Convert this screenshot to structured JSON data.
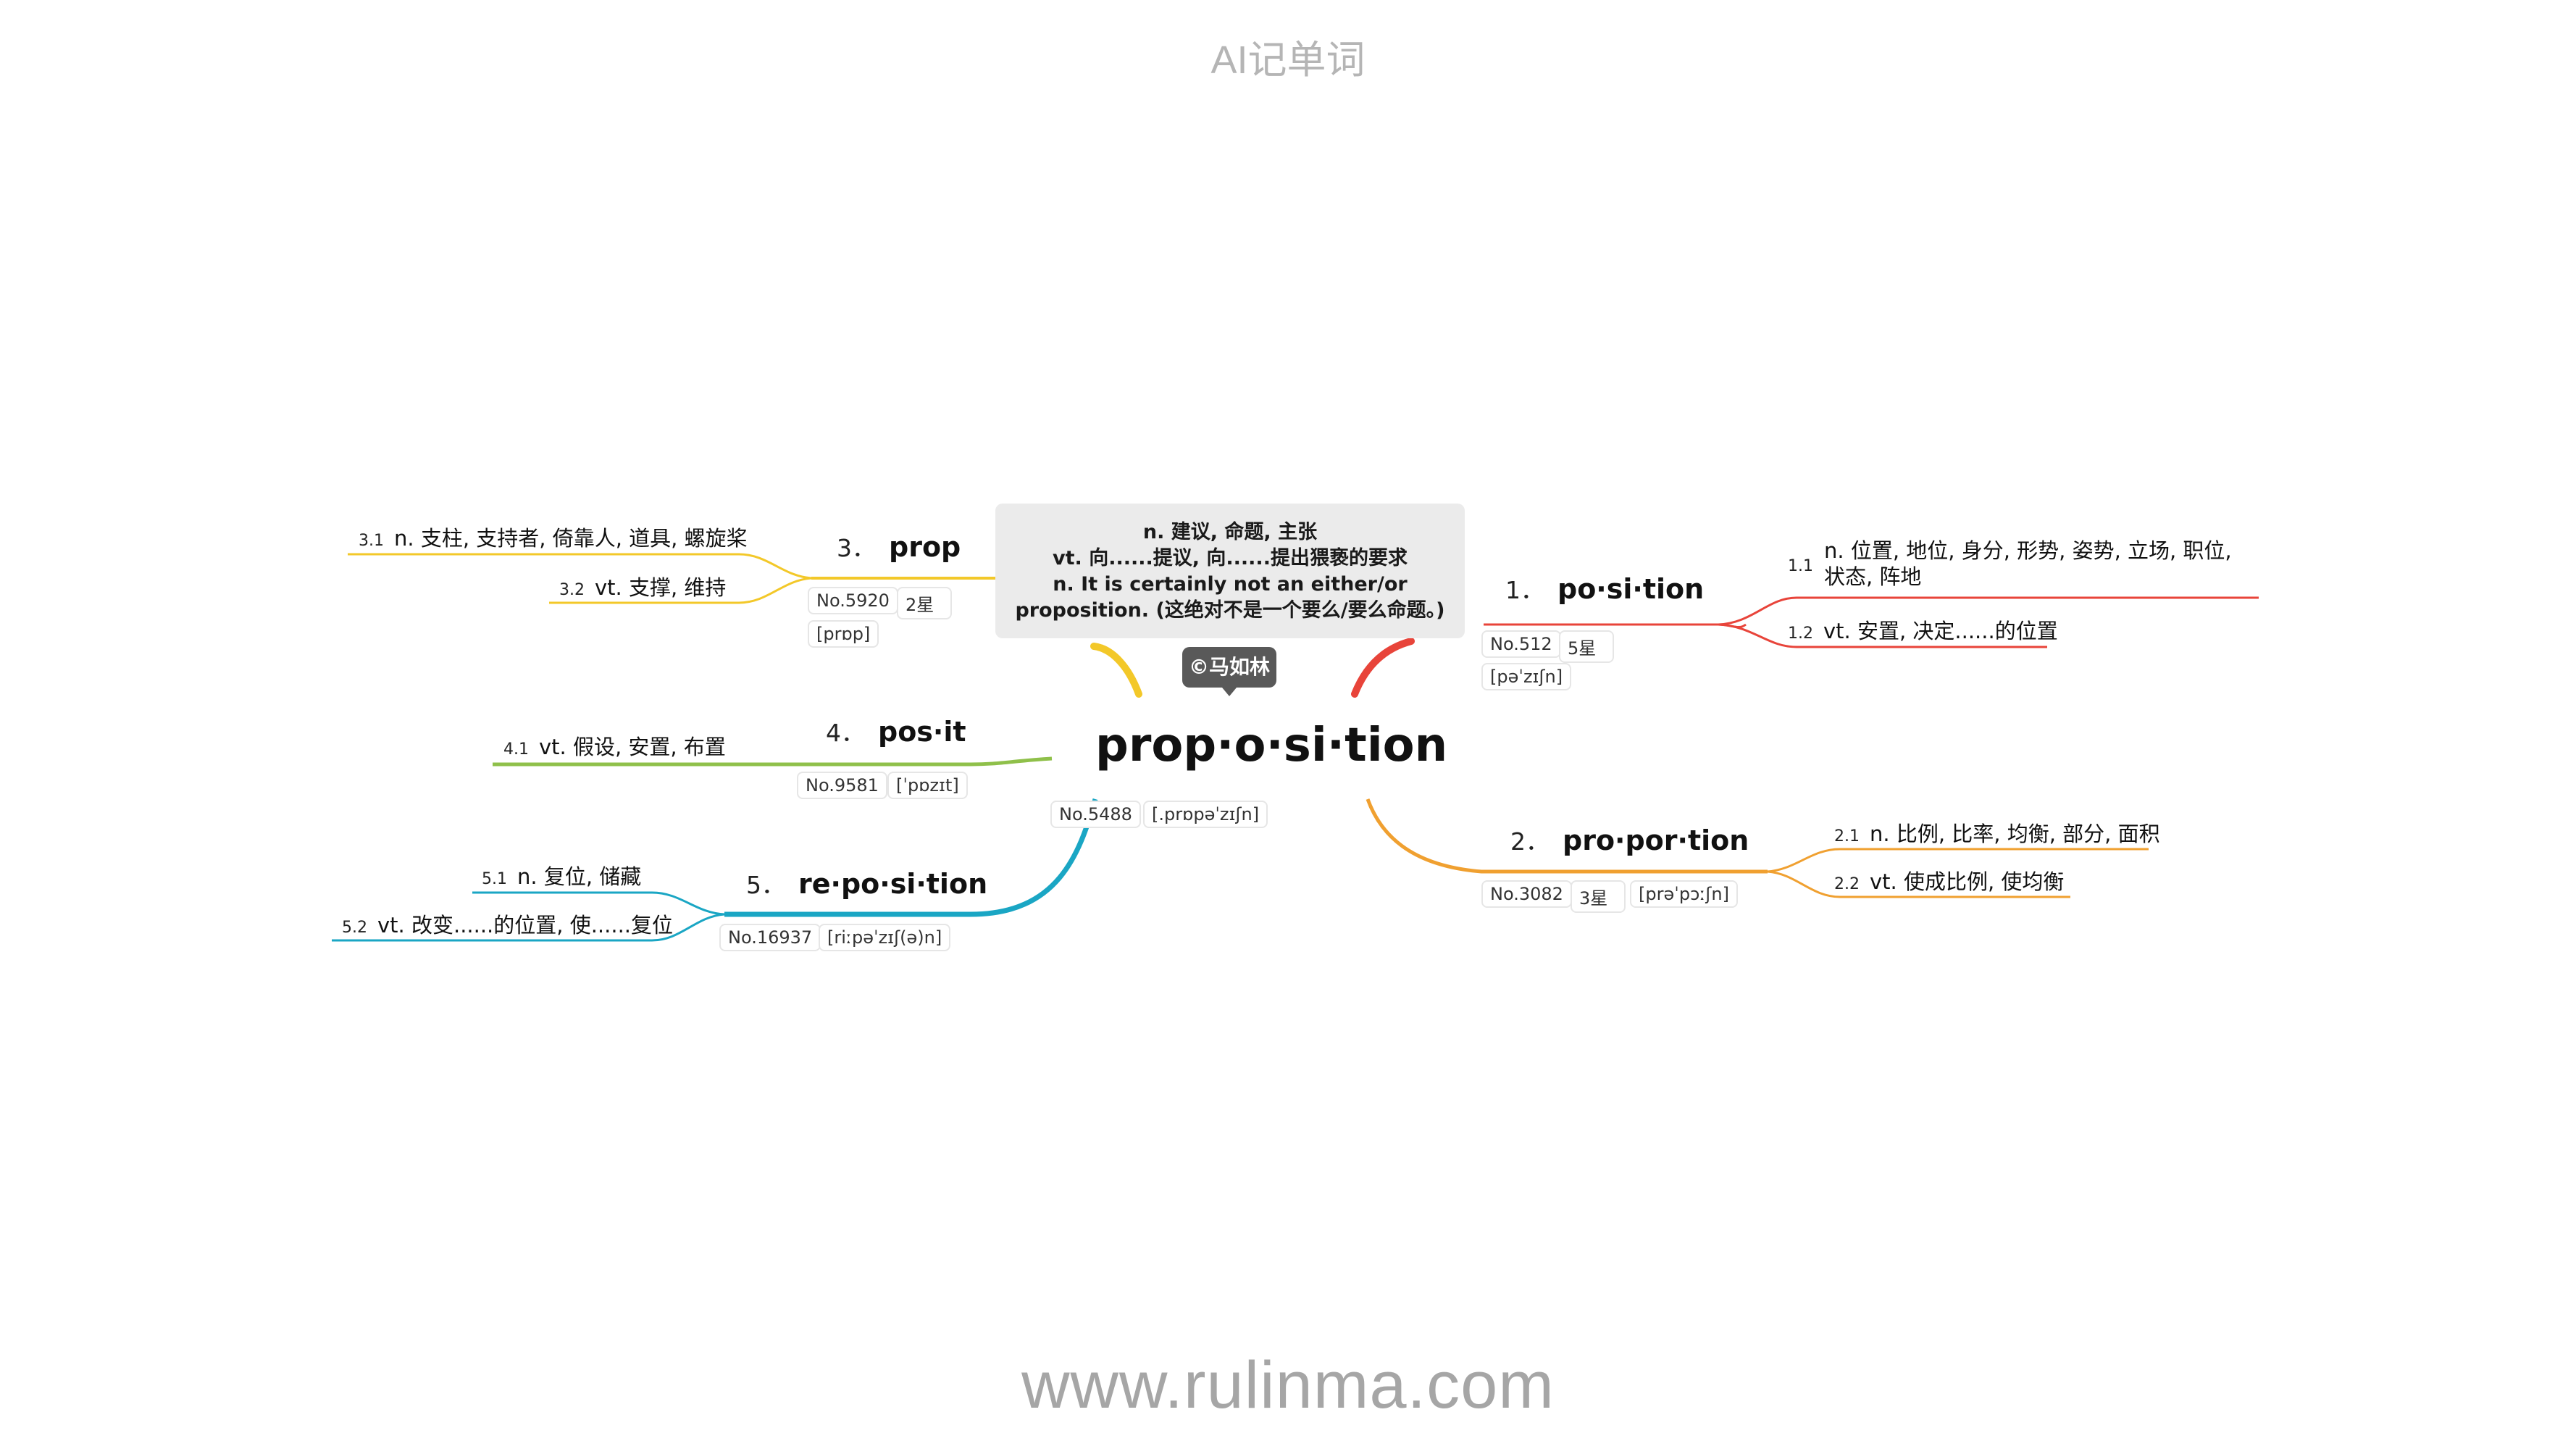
{
  "header": {
    "title": "AI记单词"
  },
  "footer": {
    "url": "www.rulinma.com"
  },
  "colors": {
    "red": "#e8443a",
    "orange": "#f0a030",
    "yellow": "#f3c829",
    "green": "#8fc04a",
    "teal": "#1aa6c4"
  },
  "center": {
    "word": "prop·o·si·tion",
    "number": "No.5488",
    "phonetic": "[.prɒpəˈzɪʃn]",
    "definition_lines": [
      "n. 建议, 命题, 主张",
      "vt. 向......提议, 向......提出猥亵的要求",
      "n. It is certainly not an either/or",
      "proposition. (这绝对不是一个要么/要么命题。)"
    ],
    "author": "©马如林"
  },
  "branches": [
    {
      "num": "1．",
      "word": "po·si·tion",
      "number": "No.512",
      "stars": "5星",
      "phonetic": "[pəˈzɪʃn]",
      "icon": "red-branch",
      "leaves": [
        {
          "num": "1.1",
          "text": "n. 位置, 地位, 身分, 形势, 姿势, 立场, 职位, 状态, 阵地"
        },
        {
          "num": "1.2",
          "text": "vt. 安置, 决定......的位置"
        }
      ]
    },
    {
      "num": "2．",
      "word": "pro·por·tion",
      "number": "No.3082",
      "stars": "3星",
      "phonetic": "[prəˈpɔːʃn]",
      "leaves": [
        {
          "num": "2.1",
          "text": "n. 比例, 比率, 均衡, 部分, 面积"
        },
        {
          "num": "2.2",
          "text": "vt. 使成比例, 使均衡"
        }
      ]
    },
    {
      "num": "3．",
      "word": "prop",
      "number": "No.5920",
      "stars": "2星",
      "phonetic": "[prɒp]",
      "leaves": [
        {
          "num": "3.1",
          "text": "n. 支柱, 支持者, 倚靠人, 道具, 螺旋桨"
        },
        {
          "num": "3.2",
          "text": "vt. 支撑, 维持"
        }
      ]
    },
    {
      "num": "4．",
      "word": "pos·it",
      "number": "No.9581",
      "phonetic": "[ˈpɒzɪt]",
      "leaves": [
        {
          "num": "4.1",
          "text": "vt. 假设, 安置, 布置"
        }
      ]
    },
    {
      "num": "5．",
      "word": "re·po·si·tion",
      "number": "No.16937",
      "phonetic": "[riːpəˈzɪʃ(ə)n]",
      "leaves": [
        {
          "num": "5.1",
          "text": "n. 复位, 储藏"
        },
        {
          "num": "5.2",
          "text": "vt. 改变......的位置, 使......复位"
        }
      ]
    }
  ]
}
